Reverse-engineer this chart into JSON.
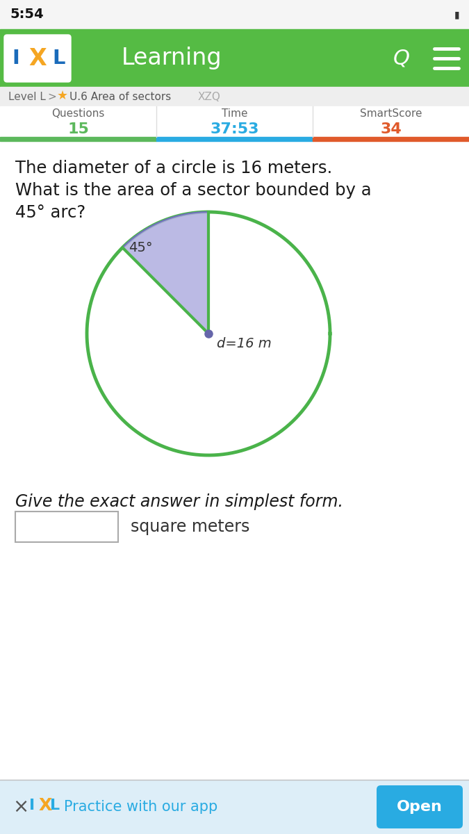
{
  "bg_color": "#ffffff",
  "status_time": "5:54",
  "header_bg": "#55bb44",
  "header_text": "Learning",
  "header_text_color": "#ffffff",
  "ixl_I_color": "#1a6bba",
  "ixl_X_color": "#f5a623",
  "star_color": "#f5a623",
  "col_headers": [
    "Questions",
    "Time",
    "SmartScore"
  ],
  "col_values": [
    "15",
    "37:53",
    "34"
  ],
  "col_value_colors": [
    "#5cb85c",
    "#29abe2",
    "#e05a2b"
  ],
  "col_bar_colors": [
    "#5cb85c",
    "#29abe2",
    "#e05a2b"
  ],
  "question_text_line1": "The diameter of a circle is 16 meters.",
  "question_text_line2": "What is the area of a sector bounded by a",
  "question_text_line3": "45° arc?",
  "angle_label": "45°",
  "diameter_label": "d=16 m",
  "circle_color": "#4ab34a",
  "sector_color": "#b0aee0",
  "sector_edge_color": "#7070bb",
  "center_dot_color": "#6666aa",
  "give_text": "Give the exact answer in simplest form.",
  "input_box_label": "square meters",
  "footer_bg": "#ddeef8",
  "footer_ixl_color": "#29abe2",
  "footer_text": "Practice with our app",
  "footer_text_color": "#29abe2",
  "open_btn_bg": "#29abe2",
  "open_btn_text": "Open",
  "open_btn_text_color": "#ffffff"
}
